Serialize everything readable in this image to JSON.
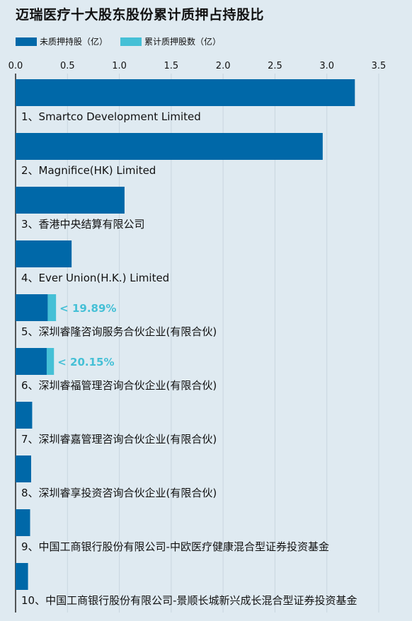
{
  "title": "迈瑞医疗十大股东股份累计质押占持股比",
  "legend": [
    {
      "name": "未质押持股（亿）",
      "color": "#0068a8"
    },
    {
      "name": "累计质押股数（亿）",
      "color": "#45c0d6"
    }
  ],
  "chart_data": {
    "type": "bar",
    "orientation": "horizontal",
    "stacked": true,
    "title": "迈瑞医疗十大股东股份累计质押占持股比",
    "xlim": [
      0,
      3.5
    ],
    "xticks": [
      "0.0",
      "0.5",
      "1.0",
      "1.5",
      "2.0",
      "2.5",
      "3.0",
      "3.5"
    ],
    "grid": true,
    "legend_position": "top-left",
    "categories": [
      "1、Smartco Development Limited",
      "2、Magnifice(HK) Limited",
      "3、香港中央结算有限公司",
      "4、Ever Union(H.K.) Limited",
      "5、深圳睿隆咨询服务合伙企业(有限合伙)",
      "6、深圳睿福管理咨询合伙企业(有限合伙)",
      "7、深圳睿嘉管理咨询合伙企业(有限合伙)",
      "8、深圳睿享投资咨询合伙企业(有限合伙)",
      "9、中国工商银行股份有限公司-中欧医疗健康混合型证券投资基金",
      "10、中国工商银行股份有限公司-景顺长城新兴成长混合型证券投资基金"
    ],
    "series": [
      {
        "name": "未质押持股（亿）",
        "color": "#0068a8",
        "values": [
          3.27,
          2.96,
          1.05,
          0.54,
          0.31,
          0.3,
          0.16,
          0.15,
          0.14,
          0.12
        ]
      },
      {
        "name": "累计质押股数（亿）",
        "color": "#45c0d6",
        "values": [
          0,
          0,
          0,
          0,
          0.08,
          0.07,
          0,
          0,
          0,
          0
        ]
      }
    ],
    "annotations": [
      {
        "category_index": 4,
        "text": "< 19.89%"
      },
      {
        "category_index": 5,
        "text": "< 20.15%"
      }
    ]
  }
}
